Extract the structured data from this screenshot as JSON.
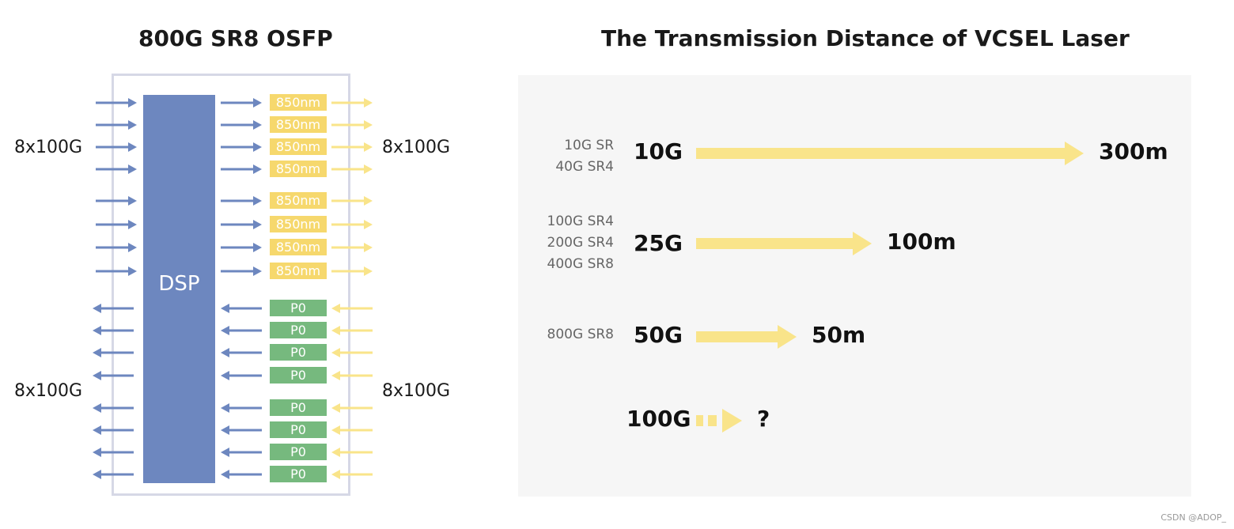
{
  "left_diagram": {
    "title": "800G SR8 OSFP",
    "dsp_label": "DSP",
    "tx_input_label": "8x100G",
    "tx_output_label": "8x100G",
    "rx_output_label": "8x100G",
    "rx_input_label": "8x100G",
    "tx_chips": [
      "850nm",
      "850nm",
      "850nm",
      "850nm",
      "850nm",
      "850nm",
      "850nm",
      "850nm"
    ],
    "rx_chips": [
      "P0",
      "P0",
      "P0",
      "P0",
      "P0",
      "P0",
      "P0",
      "P0"
    ]
  },
  "right_diagram": {
    "title": "The Transmission Distance of VCSEL Laser",
    "rows": [
      {
        "standards": [
          "10G SR",
          "40G SR4"
        ],
        "speed": "10G",
        "distance": "300m",
        "distance_m": 300,
        "arrow": "solid"
      },
      {
        "standards": [
          "100G SR4",
          "200G SR4",
          "400G SR8"
        ],
        "speed": "25G",
        "distance": "100m",
        "distance_m": 100,
        "arrow": "solid"
      },
      {
        "standards": [
          "800G SR8"
        ],
        "speed": "50G",
        "distance": "50m",
        "distance_m": 50,
        "arrow": "solid"
      },
      {
        "standards": [],
        "speed": "100G",
        "distance": "?",
        "distance_m": null,
        "arrow": "dashed"
      }
    ]
  },
  "colors": {
    "blue_arrow": "#6d87bf",
    "yellow_arrow": "#f9e48a",
    "tx_chip": "#f6d86d",
    "rx_chip": "#76b97e",
    "dsp": "#6d87bf",
    "panel_bg": "#f6f6f6",
    "frame": "#d6d8e6"
  },
  "watermark": "CSDN @ADOP_"
}
